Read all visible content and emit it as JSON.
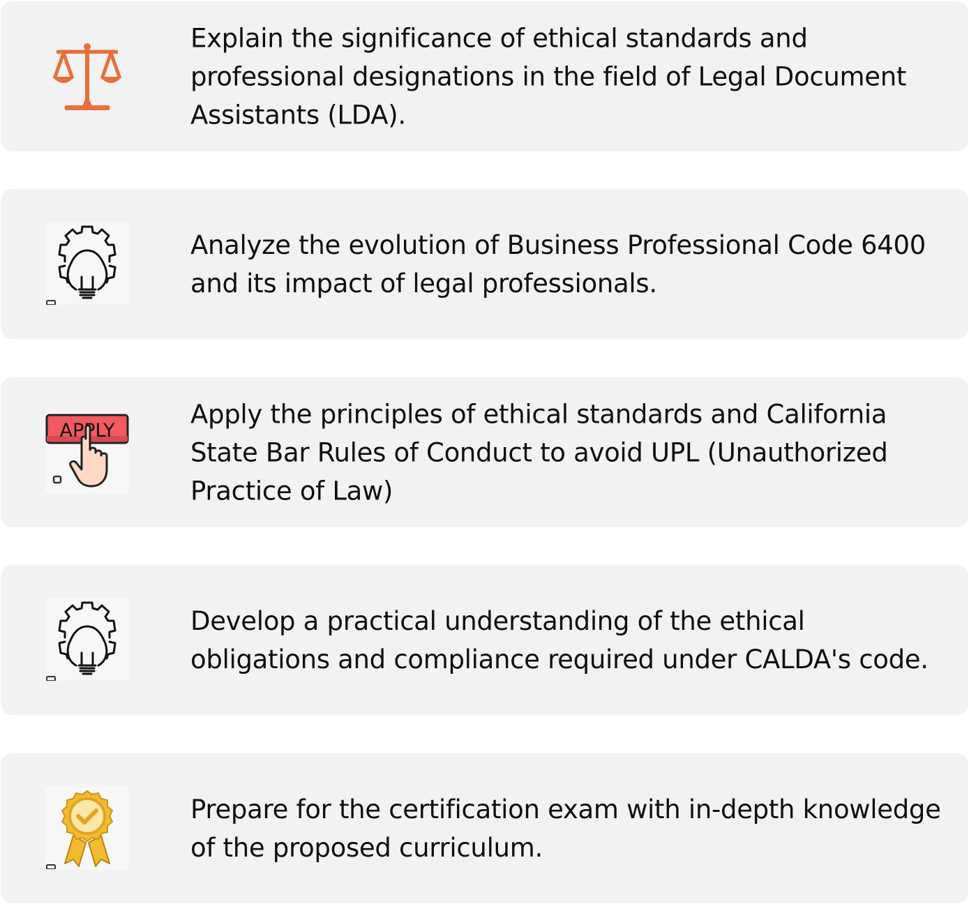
{
  "items": [
    {
      "icon": "scales-of-justice-icon",
      "text": "Explain the significance of ethical standards and professional designations in the field of Legal Document Assistants (LDA)."
    },
    {
      "icon": "gear-lightbulb-icon",
      "text": "Analyze the evolution of Business Professional Code 6400 and its impact of legal professionals."
    },
    {
      "icon": "apply-button-hand-icon",
      "icon_label": "APPLY",
      "text": "Apply the principles of ethical standards and California State Bar Rules of Conduct to avoid UPL (Unauthorized Practice of Law)"
    },
    {
      "icon": "gear-lightbulb-icon",
      "text": "Develop a practical understanding of the ethical obligations and compliance required under CALDA's code."
    },
    {
      "icon": "award-badge-icon",
      "text": "Prepare for the certification exam with in-depth knowledge of the proposed curriculum."
    }
  ],
  "colors": {
    "card_background": "#f2f2f2",
    "scales_orange": "#e8703a",
    "apply_red": "#f25a5f",
    "hand_skin": "#ffd9c4",
    "badge_gold": "#f4b92e",
    "text": "#0f0f0f"
  }
}
